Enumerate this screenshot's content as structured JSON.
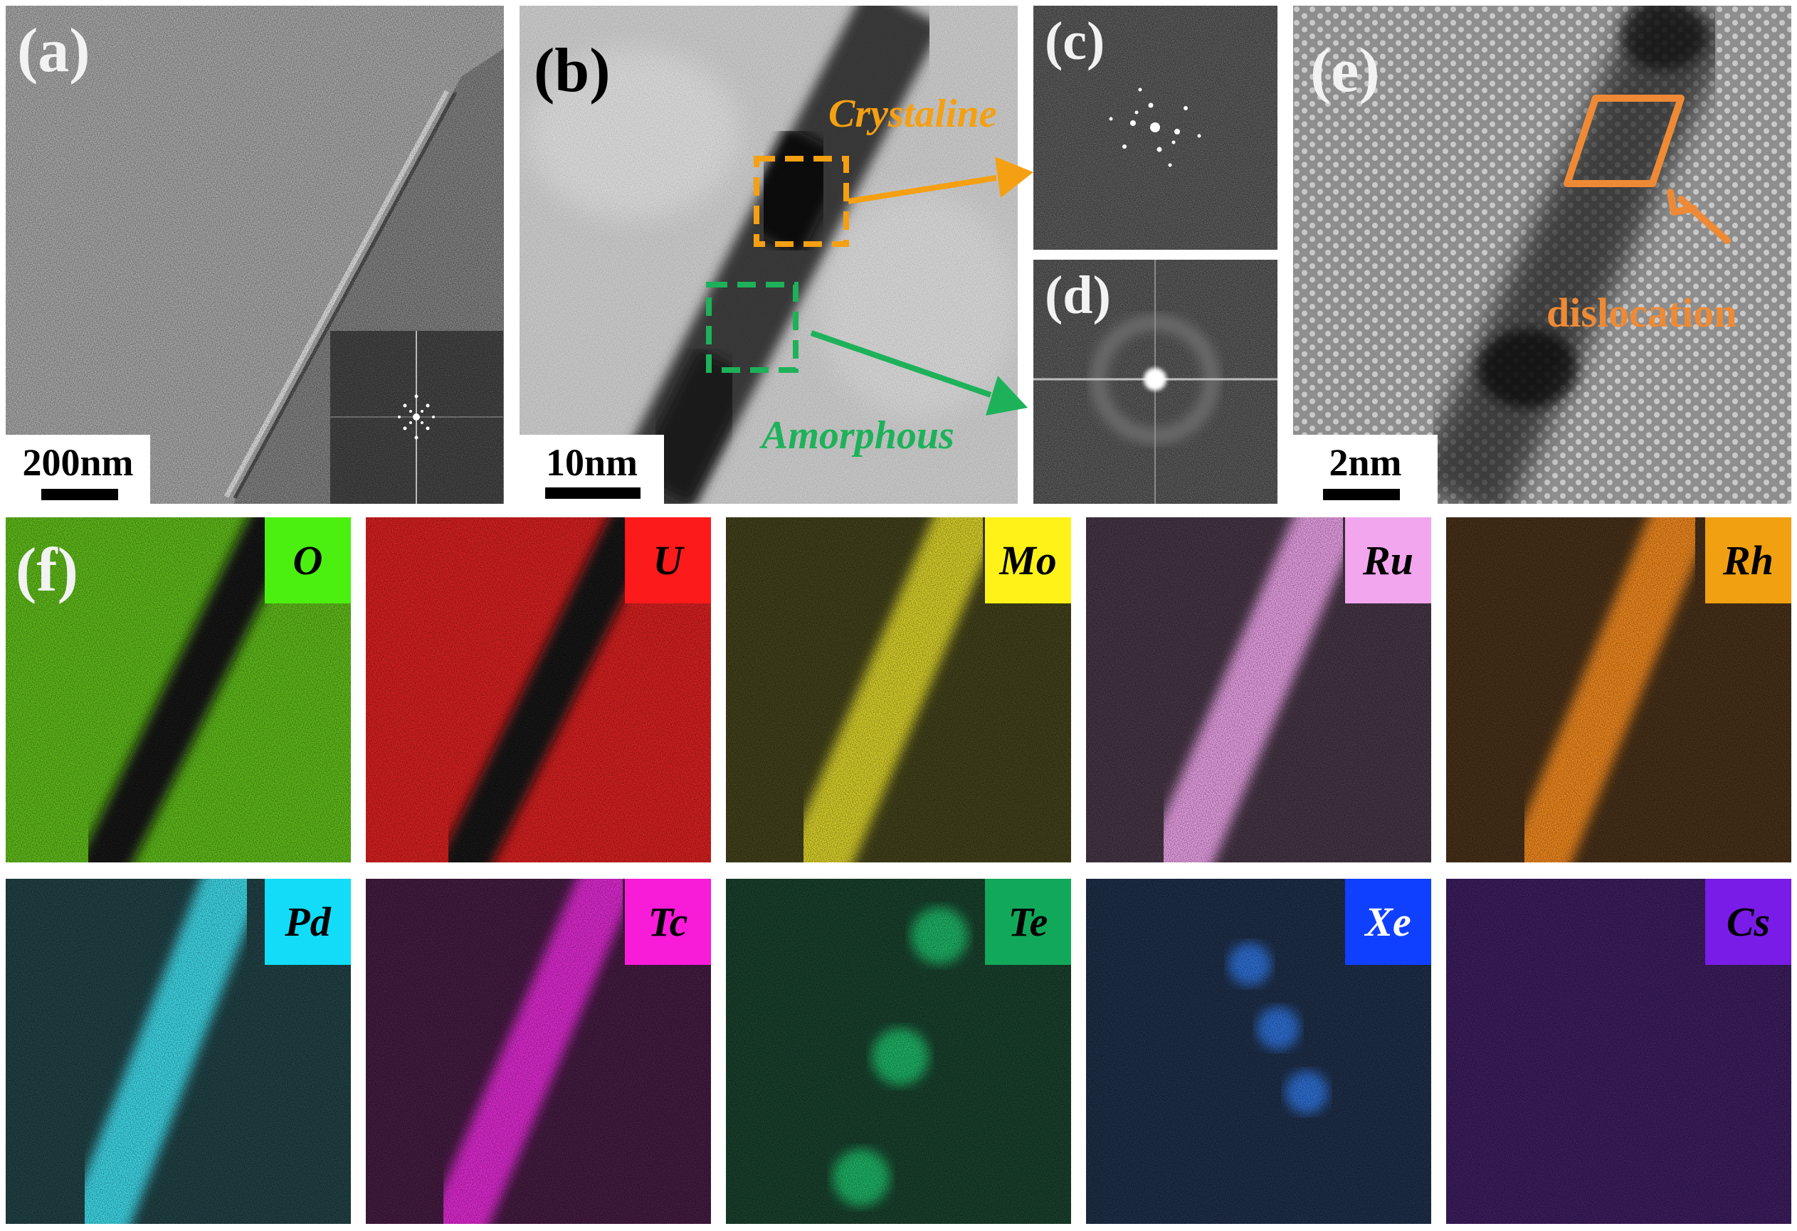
{
  "panels": {
    "a": {
      "label": "(a)",
      "scale_bar": "200nm"
    },
    "b": {
      "label": "(b)",
      "scale_bar": "10nm"
    },
    "c": {
      "label": "(c)"
    },
    "d": {
      "label": "(d)"
    },
    "e": {
      "label": "(e)",
      "scale_bar": "2nm"
    },
    "f": {
      "label": "(f)"
    }
  },
  "annotations": {
    "crystaline": "Crystaline",
    "amorphous": "Amorphous",
    "dislocation": "dislocation"
  },
  "colors": {
    "crystaline": "#f5a012",
    "amorphous": "#1db25a",
    "dislocation": "#ee8a35"
  },
  "eds_maps": [
    {
      "element": "O",
      "badge_color": "#4cf010",
      "map_color": "#5aba12"
    },
    {
      "element": "U",
      "badge_color": "#fc1a1a",
      "map_color": "#d81818"
    },
    {
      "element": "Mo",
      "badge_color": "#fff218",
      "map_color": "#d8d020"
    },
    {
      "element": "Ru",
      "badge_color": "#f2a6ee",
      "map_color": "#e89ce4"
    },
    {
      "element": "Rh",
      "badge_color": "#f0a010",
      "map_color": "#f08418"
    },
    {
      "element": "Pd",
      "badge_color": "#12dcf8",
      "map_color": "#38d8e8"
    },
    {
      "element": "Tc",
      "badge_color": "#f81cd8",
      "map_color": "#de20d0"
    },
    {
      "element": "Te",
      "badge_color": "#12a85a",
      "map_color": "#18d070"
    },
    {
      "element": "Xe",
      "badge_color": "#1040ff",
      "map_color": "#2c7cf8"
    },
    {
      "element": "Cs",
      "badge_color": "#7a1ce8",
      "map_color": "#7a20e0"
    }
  ]
}
